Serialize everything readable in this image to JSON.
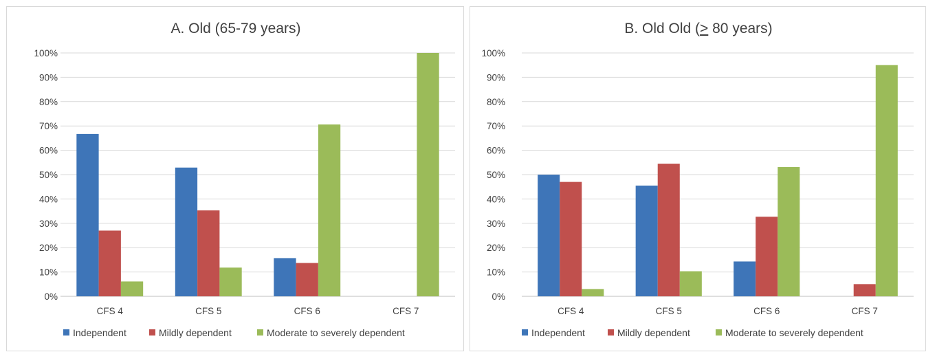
{
  "chart_data": [
    {
      "type": "bar",
      "title_prefix": "A. Old (65-79 years)",
      "title_underlined": "",
      "title_suffix": "",
      "categories": [
        "CFS 4",
        "CFS 5",
        "CFS 6",
        "CFS 7"
      ],
      "ylim": [
        0,
        100
      ],
      "yticks": [
        "0%",
        "10%",
        "20%",
        "30%",
        "40%",
        "50%",
        "60%",
        "70%",
        "80%",
        "90%",
        "100%"
      ],
      "grid": true,
      "legend_position": "bottom",
      "series": [
        {
          "name": "Independent",
          "color": "#3e75b8",
          "values": [
            66.7,
            52.9,
            15.7,
            0
          ]
        },
        {
          "name": "Mildly dependent",
          "color": "#c0504d",
          "values": [
            27.0,
            35.3,
            13.7,
            0
          ]
        },
        {
          "name": "Moderate to severely dependent",
          "color": "#9bbb59",
          "values": [
            6.1,
            11.8,
            70.6,
            100
          ]
        }
      ]
    },
    {
      "type": "bar",
      "title_prefix": "B. Old Old (",
      "title_underlined": ">",
      "title_suffix": " 80 years)",
      "categories": [
        "CFS 4",
        "CFS 5",
        "CFS 6",
        "CFS 7"
      ],
      "ylim": [
        0,
        100
      ],
      "yticks": [
        "0%",
        "10%",
        "20%",
        "30%",
        "40%",
        "50%",
        "60%",
        "70%",
        "80%",
        "90%",
        "100%"
      ],
      "grid": true,
      "legend_position": "bottom",
      "series": [
        {
          "name": "Independent",
          "color": "#3e75b8",
          "values": [
            50.0,
            45.5,
            14.3,
            0
          ]
        },
        {
          "name": "Mildly dependent",
          "color": "#c0504d",
          "values": [
            47.0,
            54.5,
            32.7,
            5.0
          ]
        },
        {
          "name": "Moderate to severely dependent",
          "color": "#9bbb59",
          "values": [
            3.0,
            10.3,
            53.1,
            95.0
          ]
        }
      ]
    }
  ]
}
